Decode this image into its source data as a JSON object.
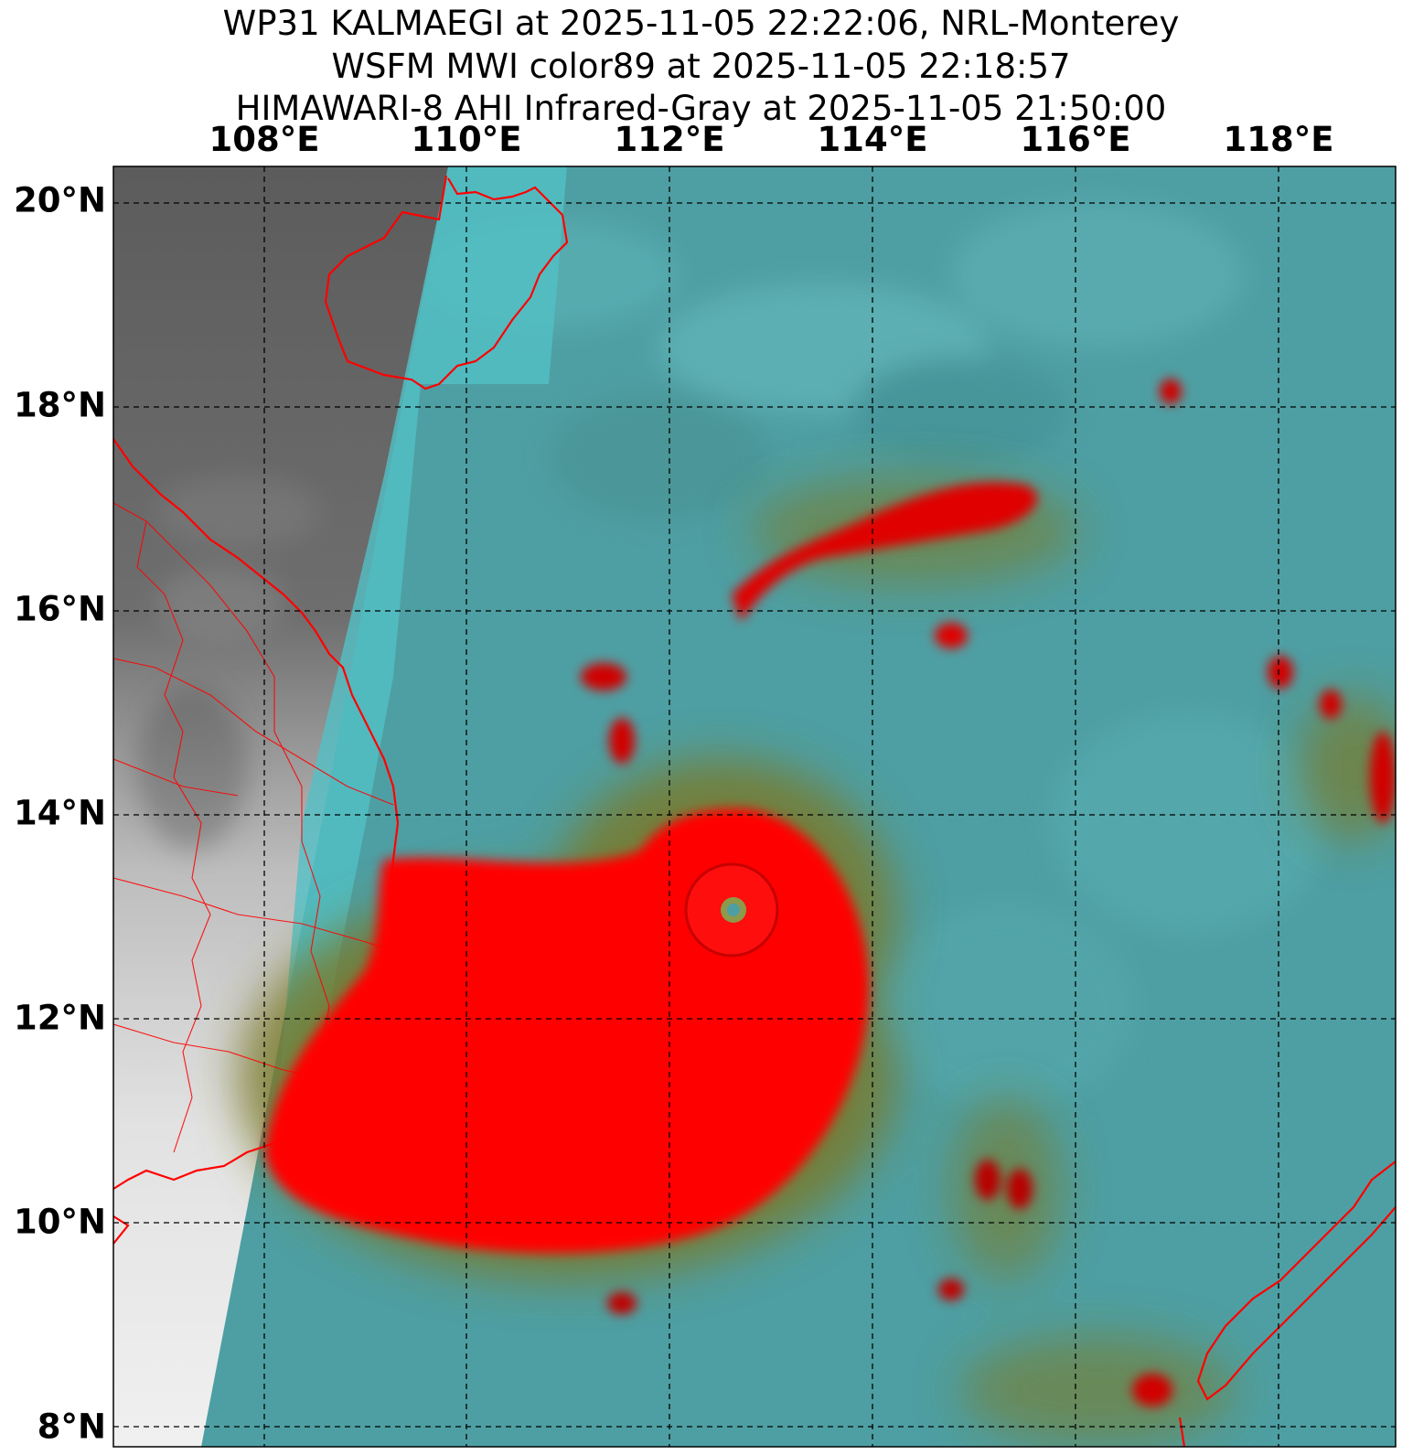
{
  "title": {
    "line1": "WP31 KALMAEGI at 2025-11-05 22:22:06, NRL-Monterey",
    "line2": "WSFM MWI color89 at 2025-11-05 22:18:57",
    "line3": "HIMAWARI-8 AHI Infrared-Gray at 2025-11-05 21:50:00"
  },
  "longitude_labels": [
    "108°E",
    "110°E",
    "112°E",
    "114°E",
    "116°E",
    "118°E"
  ],
  "latitude_labels": [
    "20°N",
    "18°N",
    "16°N",
    "14°N",
    "12°N",
    "10°N",
    "8°N"
  ],
  "map": {
    "lon_range": [
      106.5,
      119.2
    ],
    "lat_range": [
      7.85,
      20.35
    ],
    "gridlines": "dashed black",
    "coastline_color": "#ff0000",
    "ocean_color": "#4ea3a6",
    "storm_center": {
      "lon": 112.6,
      "lat": 13.05
    }
  }
}
